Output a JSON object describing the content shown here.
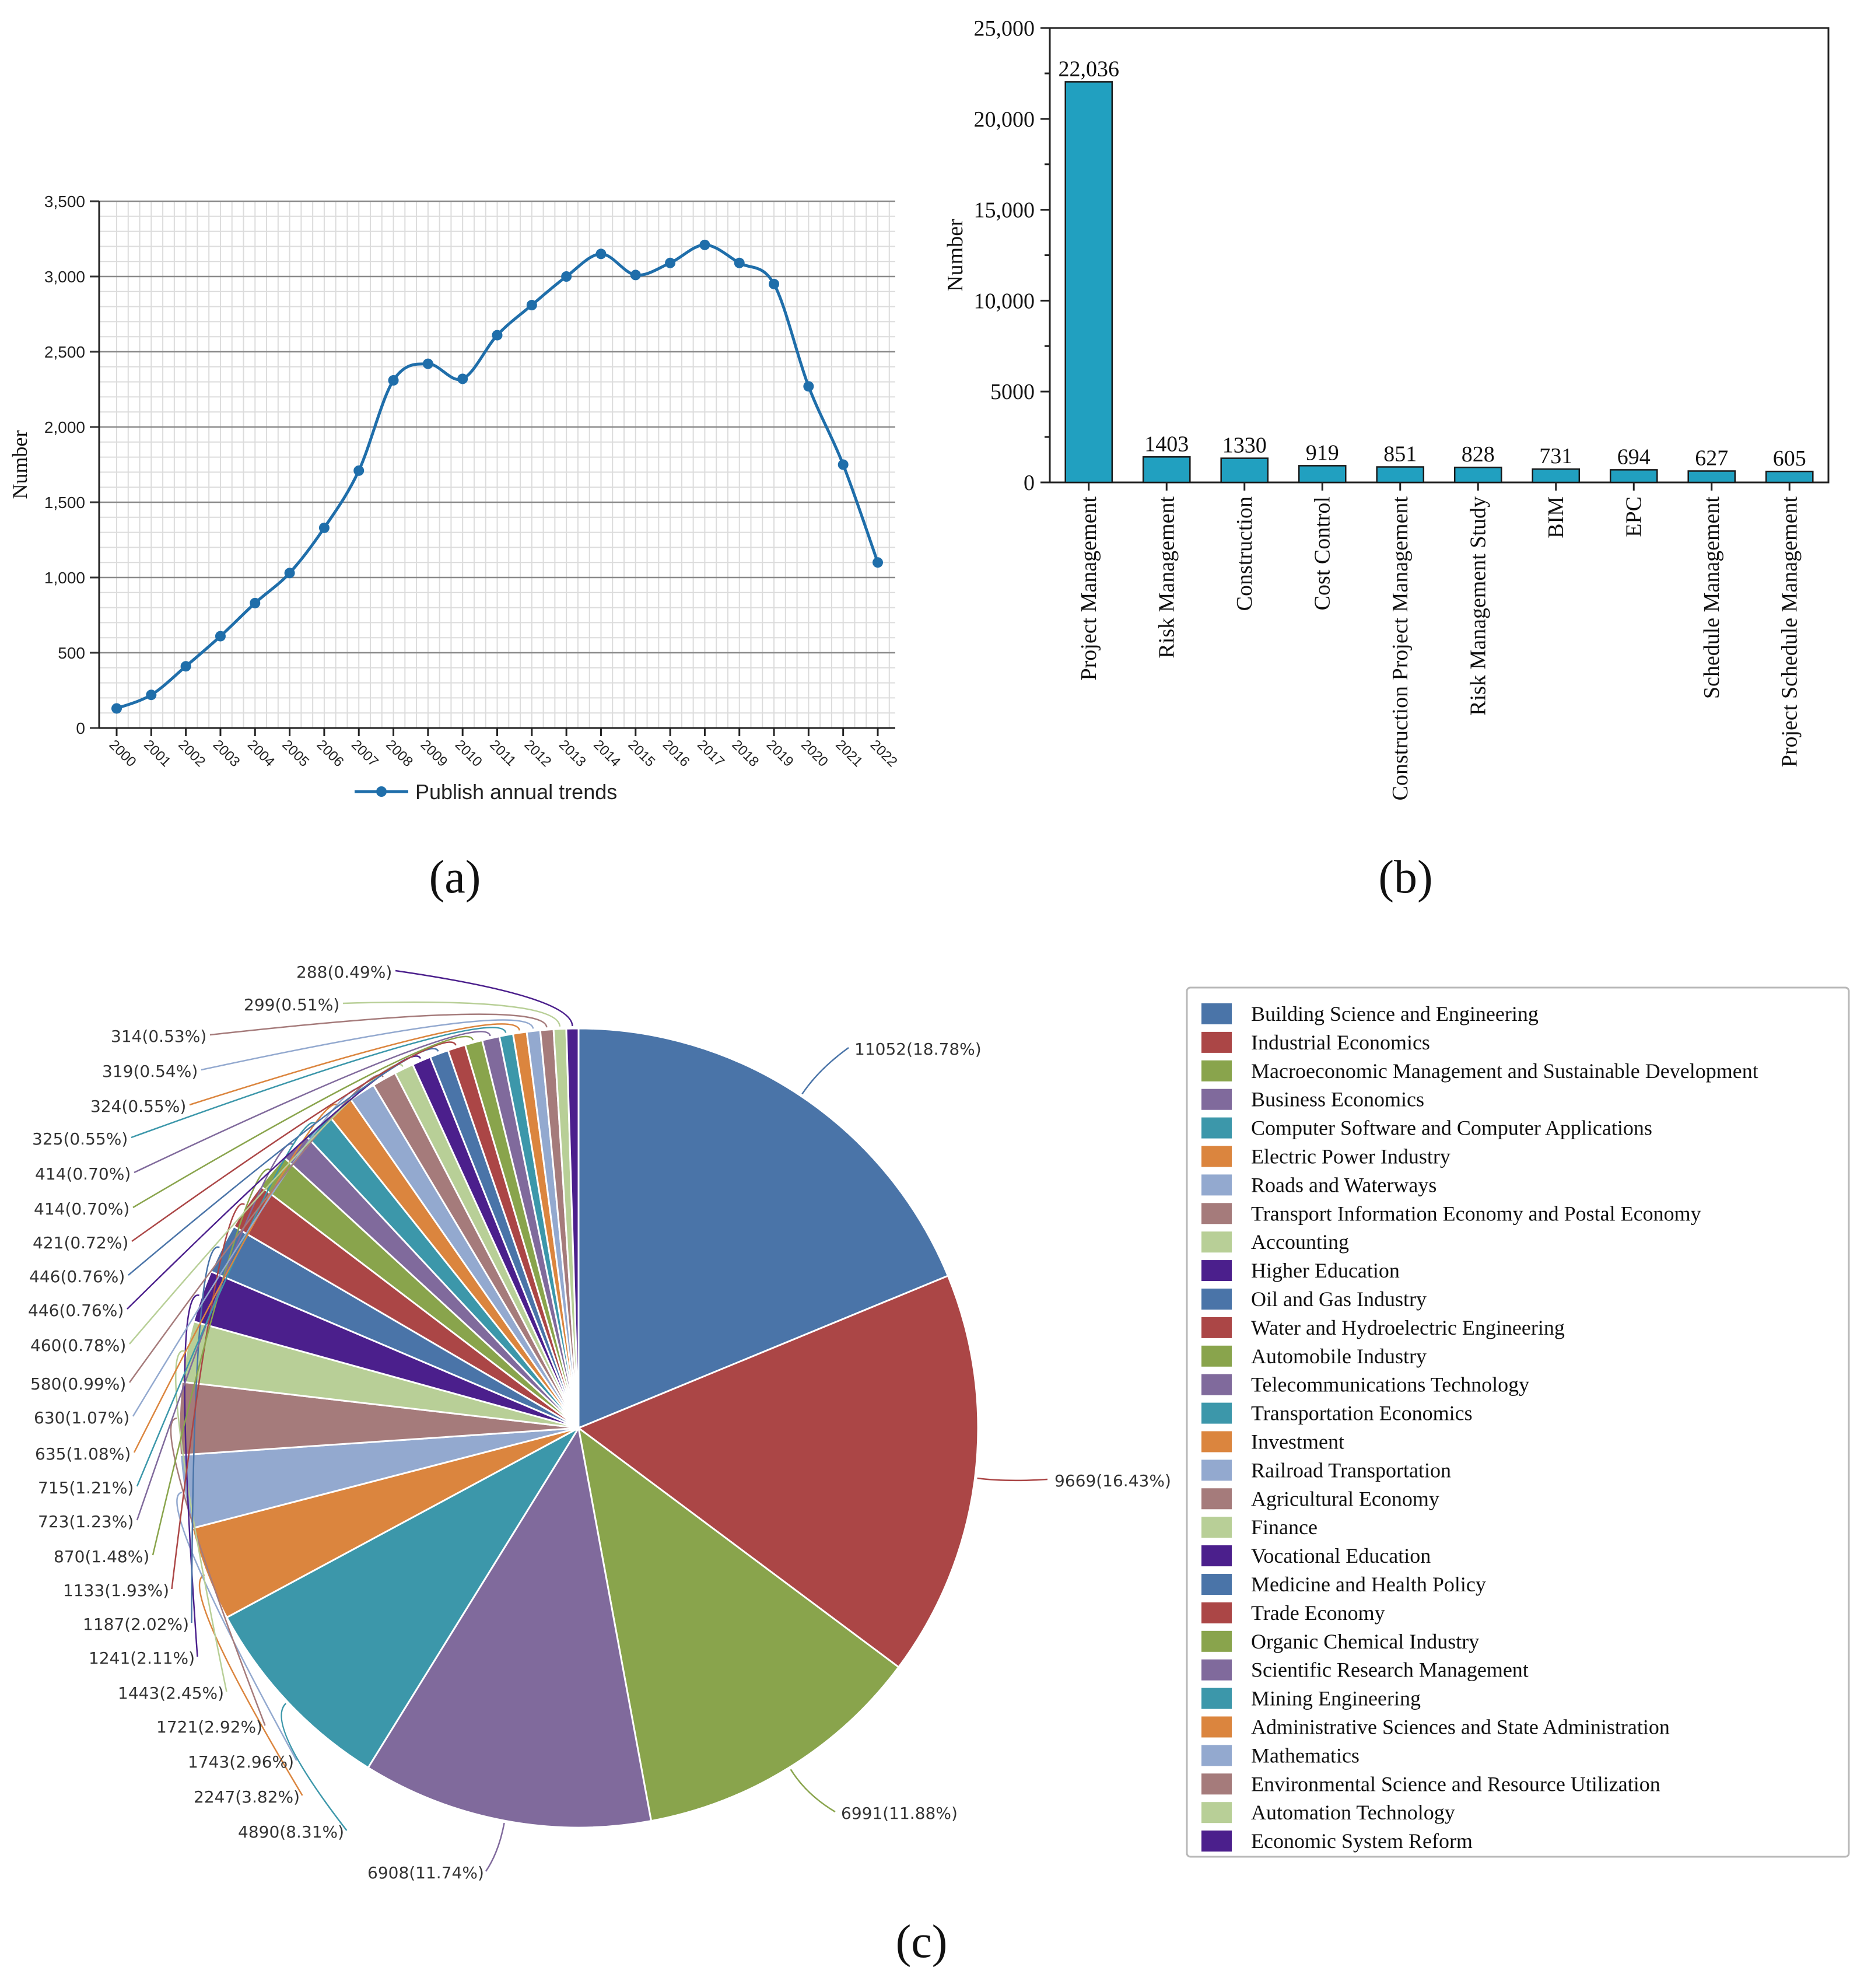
{
  "panels": {
    "a": {
      "label": "(a)"
    },
    "b": {
      "label": "(b)"
    },
    "c": {
      "label": "(c)"
    }
  },
  "chart_data": [
    {
      "id": "a",
      "type": "line",
      "title": "",
      "xlabel": "",
      "ylabel": "Number",
      "ylim": [
        0,
        3500
      ],
      "yticks": [
        0,
        500,
        1000,
        1500,
        2000,
        2500,
        3000,
        3500
      ],
      "ytick_labels": [
        "0",
        "500",
        "1,000",
        "1,500",
        "2,000",
        "2,500",
        "3,000",
        "3,500"
      ],
      "grid": true,
      "legend_position": "bottom",
      "x": [
        "2000",
        "2001",
        "2002",
        "2003",
        "2004",
        "2005",
        "2006",
        "2007",
        "2008",
        "2009",
        "2010",
        "2011",
        "2012",
        "2013",
        "2014",
        "2015",
        "2016",
        "2017",
        "2018",
        "2019",
        "2020",
        "2021",
        "2022"
      ],
      "series": [
        {
          "name": "Publish annual trends",
          "color": "#1f6eaa",
          "values": [
            130,
            220,
            410,
            610,
            830,
            1030,
            1330,
            1710,
            2310,
            2420,
            2320,
            2610,
            2810,
            3000,
            3150,
            3010,
            3090,
            3210,
            3090,
            2950,
            2270,
            1750,
            1100
          ]
        }
      ]
    },
    {
      "id": "b",
      "type": "bar",
      "title": "",
      "xlabel": "",
      "ylabel": "Number",
      "ylim": [
        0,
        25000
      ],
      "yticks": [
        0,
        5000,
        10000,
        15000,
        20000,
        25000
      ],
      "ytick_labels": [
        "0",
        "5000",
        "10,000",
        "15,000",
        "20,000",
        "25,000"
      ],
      "bar_color": "#21a0c0",
      "categories": [
        "Project Management",
        "Risk Management",
        "Construction",
        "Cost Control",
        "Construction Project Management",
        "Risk Management Study",
        "BIM",
        "EPC",
        "Schedule Management",
        "Project Schedule Management"
      ],
      "values": [
        22036,
        1403,
        1330,
        919,
        851,
        828,
        731,
        694,
        627,
        605
      ],
      "value_labels": [
        "22,036",
        "1403",
        "1330",
        "919",
        "851",
        "828",
        "731",
        "694",
        "627",
        "605"
      ]
    },
    {
      "id": "c",
      "type": "pie",
      "title": "",
      "legend_position": "right",
      "slices": [
        {
          "name": "Building Science and Engineering",
          "value": 11052,
          "label": "11052(18.78%)",
          "color": "#4a74a8"
        },
        {
          "name": "Industrial Economics",
          "value": 9669,
          "label": "9669(16.43%)",
          "color": "#ab4646"
        },
        {
          "name": "Macroeconomic Management and Sustainable Development",
          "value": 6991,
          "label": "6991(11.88%)",
          "color": "#89a44c"
        },
        {
          "name": "Business Economics",
          "value": 6908,
          "label": "6908(11.74%)",
          "color": "#806a9c"
        },
        {
          "name": "Computer Software and Computer Applications",
          "value": 4890,
          "label": "4890(8.31%)",
          "color": "#3c97aa"
        },
        {
          "name": "Electric Power Industry",
          "value": 2247,
          "label": "2247(3.82%)",
          "color": "#db853e"
        },
        {
          "name": "Roads and Waterways",
          "value": 1743,
          "label": "1743(2.96%)",
          "color": "#93a9cf"
        },
        {
          "name": "Transport Information Economy and Postal Economy",
          "value": 1721,
          "label": "1721(2.92%)",
          "color": "#a57b7b"
        },
        {
          "name": "Accounting",
          "value": 1443,
          "label": "1443(2.45%)",
          "color": "#b8cf97"
        },
        {
          "name": "Higher Education",
          "value": 1241,
          "label": "1241(2.11%)",
          "color": "#4b1f8c"
        },
        {
          "name": "Oil and Gas Industry",
          "value": 1187,
          "label": "1187(2.02%)",
          "color": "#4a74a8"
        },
        {
          "name": "Water and Hydroelectric Engineering",
          "value": 1133,
          "label": "1133(1.93%)",
          "color": "#ab4646"
        },
        {
          "name": "Automobile Industry",
          "value": 870,
          "label": "870(1.48%)",
          "color": "#89a44c"
        },
        {
          "name": "Telecommunications Technology",
          "value": 723,
          "label": "723(1.23%)",
          "color": "#806a9c"
        },
        {
          "name": "Transportation Economics",
          "value": 715,
          "label": "715(1.21%)",
          "color": "#3c97aa"
        },
        {
          "name": "Investment",
          "value": 635,
          "label": "635(1.08%)",
          "color": "#db853e"
        },
        {
          "name": "Railroad Transportation",
          "value": 630,
          "label": "630(1.07%)",
          "color": "#93a9cf"
        },
        {
          "name": "Agricultural Economy",
          "value": 580,
          "label": "580(0.99%)",
          "color": "#a57b7b"
        },
        {
          "name": "Finance",
          "value": 460,
          "label": "460(0.78%)",
          "color": "#b8cf97"
        },
        {
          "name": "Vocational Education",
          "value": 446,
          "label": "446(0.76%)",
          "color": "#4b1f8c"
        },
        {
          "name": "Medicine and Health Policy",
          "value": 446,
          "label": "446(0.76%)",
          "color": "#4a74a8"
        },
        {
          "name": "Trade Economy",
          "value": 421,
          "label": "421(0.72%)",
          "color": "#ab4646"
        },
        {
          "name": "Organic Chemical Industry",
          "value": 414,
          "label": "414(0.70%)",
          "color": "#89a44c"
        },
        {
          "name": "Scientific Research Management",
          "value": 414,
          "label": "414(0.70%)",
          "color": "#806a9c"
        },
        {
          "name": "Mining Engineering",
          "value": 325,
          "label": "325(0.55%)",
          "color": "#3c97aa"
        },
        {
          "name": "Administrative Sciences and State Administration",
          "value": 324,
          "label": "324(0.55%)",
          "color": "#db853e"
        },
        {
          "name": "Mathematics",
          "value": 319,
          "label": "319(0.54%)",
          "color": "#93a9cf"
        },
        {
          "name": "Environmental Science and Resource Utilization",
          "value": 314,
          "label": "314(0.53%)",
          "color": "#a57b7b"
        },
        {
          "name": "Automation Technology",
          "value": 299,
          "label": "299(0.51%)",
          "color": "#b8cf97"
        },
        {
          "name": "Economic System Reform",
          "value": 288,
          "label": "288(0.49%)",
          "color": "#4b1f8c"
        }
      ]
    }
  ]
}
